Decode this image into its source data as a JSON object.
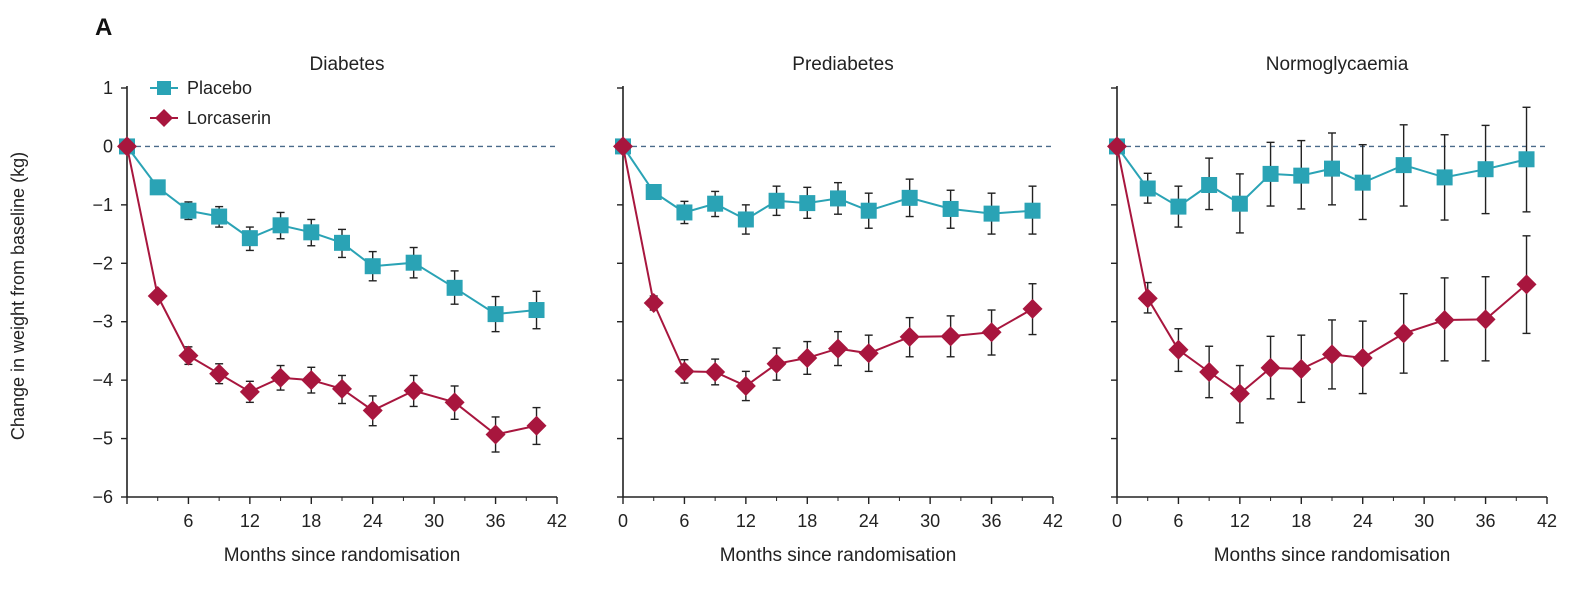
{
  "figure": {
    "panel_letter": "A",
    "ylabel": "Change in weight from baseline (kg)",
    "colors": {
      "placebo": "#2aa3b5",
      "lorcaserin": "#a8163e",
      "axis": "#222222",
      "zero_line": "#4a6a8a"
    },
    "legend": {
      "placement": "top-left of first panel",
      "entries": [
        "Placebo",
        "Lorcaserin"
      ]
    }
  },
  "chart_data": [
    {
      "type": "line",
      "title": "Diabetes",
      "xlabel": "Months since randomisation",
      "ylabel": "Change in weight from baseline (kg)",
      "xlim": [
        0,
        42
      ],
      "ylim": [
        -6,
        1
      ],
      "xticks": [
        "",
        "6",
        "12",
        "18",
        "24",
        "30",
        "36",
        "42"
      ],
      "yticks": [
        "1",
        "0",
        "−1",
        "−2",
        "−3",
        "−4",
        "−5",
        "−6"
      ],
      "zero_reference_line": true,
      "series": [
        {
          "name": "Placebo",
          "marker": "square",
          "points": [
            {
              "x": 0,
              "y": 0,
              "lo": 0,
              "hi": 0
            },
            {
              "x": 3,
              "y": -0.7,
              "lo": -0.8,
              "hi": -0.6
            },
            {
              "x": 6,
              "y": -1.1,
              "lo": -1.25,
              "hi": -0.95
            },
            {
              "x": 9,
              "y": -1.2,
              "lo": -1.38,
              "hi": -1.03
            },
            {
              "x": 12,
              "y": -1.57,
              "lo": -1.78,
              "hi": -1.38
            },
            {
              "x": 15,
              "y": -1.35,
              "lo": -1.58,
              "hi": -1.13
            },
            {
              "x": 18,
              "y": -1.47,
              "lo": -1.7,
              "hi": -1.25
            },
            {
              "x": 21,
              "y": -1.65,
              "lo": -1.9,
              "hi": -1.42
            },
            {
              "x": 24,
              "y": -2.05,
              "lo": -2.3,
              "hi": -1.8
            },
            {
              "x": 28,
              "y": -1.99,
              "lo": -2.25,
              "hi": -1.73
            },
            {
              "x": 32,
              "y": -2.42,
              "lo": -2.7,
              "hi": -2.13
            },
            {
              "x": 36,
              "y": -2.87,
              "lo": -3.17,
              "hi": -2.57
            },
            {
              "x": 40,
              "y": -2.8,
              "lo": -3.12,
              "hi": -2.48
            }
          ]
        },
        {
          "name": "Lorcaserin",
          "marker": "diamond",
          "points": [
            {
              "x": 0,
              "y": 0,
              "lo": 0,
              "hi": 0
            },
            {
              "x": 3,
              "y": -2.56,
              "lo": -2.65,
              "hi": -2.47
            },
            {
              "x": 6,
              "y": -3.58,
              "lo": -3.73,
              "hi": -3.43
            },
            {
              "x": 9,
              "y": -3.89,
              "lo": -4.06,
              "hi": -3.72
            },
            {
              "x": 12,
              "y": -4.2,
              "lo": -4.38,
              "hi": -4.02
            },
            {
              "x": 15,
              "y": -3.96,
              "lo": -4.17,
              "hi": -3.75
            },
            {
              "x": 18,
              "y": -4.0,
              "lo": -4.22,
              "hi": -3.78
            },
            {
              "x": 21,
              "y": -4.15,
              "lo": -4.4,
              "hi": -3.92
            },
            {
              "x": 24,
              "y": -4.52,
              "lo": -4.78,
              "hi": -4.27
            },
            {
              "x": 28,
              "y": -4.18,
              "lo": -4.45,
              "hi": -3.92
            },
            {
              "x": 32,
              "y": -4.38,
              "lo": -4.67,
              "hi": -4.1
            },
            {
              "x": 36,
              "y": -4.93,
              "lo": -5.23,
              "hi": -4.63
            },
            {
              "x": 40,
              "y": -4.78,
              "lo": -5.1,
              "hi": -4.47
            }
          ]
        }
      ]
    },
    {
      "type": "line",
      "title": "Prediabetes",
      "xlabel": "Months since randomisation",
      "ylabel": "",
      "xlim": [
        0,
        42
      ],
      "ylim": [
        -6,
        1
      ],
      "xticks": [
        "0",
        "6",
        "12",
        "18",
        "24",
        "30",
        "36",
        "42"
      ],
      "yticks": [],
      "zero_reference_line": true,
      "series": [
        {
          "name": "Placebo",
          "marker": "square",
          "points": [
            {
              "x": 0,
              "y": 0,
              "lo": 0,
              "hi": 0
            },
            {
              "x": 3,
              "y": -0.78,
              "lo": -0.9,
              "hi": -0.66
            },
            {
              "x": 6,
              "y": -1.13,
              "lo": -1.32,
              "hi": -0.94
            },
            {
              "x": 9,
              "y": -0.98,
              "lo": -1.2,
              "hi": -0.77
            },
            {
              "x": 12,
              "y": -1.25,
              "lo": -1.5,
              "hi": -1.0
            },
            {
              "x": 15,
              "y": -0.93,
              "lo": -1.18,
              "hi": -0.68
            },
            {
              "x": 18,
              "y": -0.97,
              "lo": -1.23,
              "hi": -0.7
            },
            {
              "x": 21,
              "y": -0.89,
              "lo": -1.16,
              "hi": -0.62
            },
            {
              "x": 24,
              "y": -1.1,
              "lo": -1.4,
              "hi": -0.8
            },
            {
              "x": 28,
              "y": -0.88,
              "lo": -1.2,
              "hi": -0.56
            },
            {
              "x": 32,
              "y": -1.07,
              "lo": -1.4,
              "hi": -0.75
            },
            {
              "x": 36,
              "y": -1.15,
              "lo": -1.5,
              "hi": -0.8
            },
            {
              "x": 40,
              "y": -1.1,
              "lo": -1.5,
              "hi": -0.68
            }
          ]
        },
        {
          "name": "Lorcaserin",
          "marker": "diamond",
          "points": [
            {
              "x": 0,
              "y": 0,
              "lo": 0,
              "hi": 0
            },
            {
              "x": 3,
              "y": -2.68,
              "lo": -2.8,
              "hi": -2.56
            },
            {
              "x": 6,
              "y": -3.85,
              "lo": -4.05,
              "hi": -3.65
            },
            {
              "x": 9,
              "y": -3.86,
              "lo": -4.08,
              "hi": -3.64
            },
            {
              "x": 12,
              "y": -4.1,
              "lo": -4.35,
              "hi": -3.85
            },
            {
              "x": 15,
              "y": -3.72,
              "lo": -4.0,
              "hi": -3.45
            },
            {
              "x": 18,
              "y": -3.62,
              "lo": -3.9,
              "hi": -3.34
            },
            {
              "x": 21,
              "y": -3.46,
              "lo": -3.75,
              "hi": -3.17
            },
            {
              "x": 24,
              "y": -3.54,
              "lo": -3.85,
              "hi": -3.23
            },
            {
              "x": 28,
              "y": -3.26,
              "lo": -3.6,
              "hi": -2.93
            },
            {
              "x": 32,
              "y": -3.25,
              "lo": -3.6,
              "hi": -2.9
            },
            {
              "x": 36,
              "y": -3.18,
              "lo": -3.57,
              "hi": -2.8
            },
            {
              "x": 40,
              "y": -2.78,
              "lo": -3.22,
              "hi": -2.35
            }
          ]
        }
      ]
    },
    {
      "type": "line",
      "title": "Normoglycaemia",
      "xlabel": "Months since randomisation",
      "ylabel": "",
      "xlim": [
        0,
        42
      ],
      "ylim": [
        -6,
        1
      ],
      "xticks": [
        "0",
        "6",
        "12",
        "18",
        "24",
        "30",
        "36",
        "42"
      ],
      "yticks": [],
      "zero_reference_line": true,
      "series": [
        {
          "name": "Placebo",
          "marker": "square",
          "points": [
            {
              "x": 0,
              "y": 0,
              "lo": 0,
              "hi": 0
            },
            {
              "x": 3,
              "y": -0.72,
              "lo": -0.97,
              "hi": -0.46
            },
            {
              "x": 6,
              "y": -1.03,
              "lo": -1.38,
              "hi": -0.68
            },
            {
              "x": 9,
              "y": -0.66,
              "lo": -1.08,
              "hi": -0.2
            },
            {
              "x": 12,
              "y": -0.98,
              "lo": -1.48,
              "hi": -0.47
            },
            {
              "x": 15,
              "y": -0.47,
              "lo": -1.02,
              "hi": 0.07
            },
            {
              "x": 18,
              "y": -0.5,
              "lo": -1.07,
              "hi": 0.1
            },
            {
              "x": 21,
              "y": -0.38,
              "lo": -1.0,
              "hi": 0.23
            },
            {
              "x": 24,
              "y": -0.62,
              "lo": -1.25,
              "hi": 0.03
            },
            {
              "x": 28,
              "y": -0.32,
              "lo": -1.02,
              "hi": 0.37
            },
            {
              "x": 32,
              "y": -0.53,
              "lo": -1.26,
              "hi": 0.2
            },
            {
              "x": 36,
              "y": -0.39,
              "lo": -1.15,
              "hi": 0.36
            },
            {
              "x": 40,
              "y": -0.22,
              "lo": -1.12,
              "hi": 0.67
            }
          ]
        },
        {
          "name": "Lorcaserin",
          "marker": "diamond",
          "points": [
            {
              "x": 0,
              "y": 0,
              "lo": 0,
              "hi": 0
            },
            {
              "x": 3,
              "y": -2.6,
              "lo": -2.85,
              "hi": -2.33
            },
            {
              "x": 6,
              "y": -3.48,
              "lo": -3.85,
              "hi": -3.12
            },
            {
              "x": 9,
              "y": -3.86,
              "lo": -4.3,
              "hi": -3.42
            },
            {
              "x": 12,
              "y": -4.23,
              "lo": -4.73,
              "hi": -3.75
            },
            {
              "x": 15,
              "y": -3.79,
              "lo": -4.32,
              "hi": -3.25
            },
            {
              "x": 18,
              "y": -3.81,
              "lo": -4.38,
              "hi": -3.23
            },
            {
              "x": 21,
              "y": -3.56,
              "lo": -4.15,
              "hi": -2.97
            },
            {
              "x": 24,
              "y": -3.62,
              "lo": -4.23,
              "hi": -2.99
            },
            {
              "x": 28,
              "y": -3.2,
              "lo": -3.88,
              "hi": -2.52
            },
            {
              "x": 32,
              "y": -2.97,
              "lo": -3.67,
              "hi": -2.25
            },
            {
              "x": 36,
              "y": -2.96,
              "lo": -3.67,
              "hi": -2.23
            },
            {
              "x": 40,
              "y": -2.36,
              "lo": -3.2,
              "hi": -1.53
            }
          ]
        }
      ]
    }
  ]
}
